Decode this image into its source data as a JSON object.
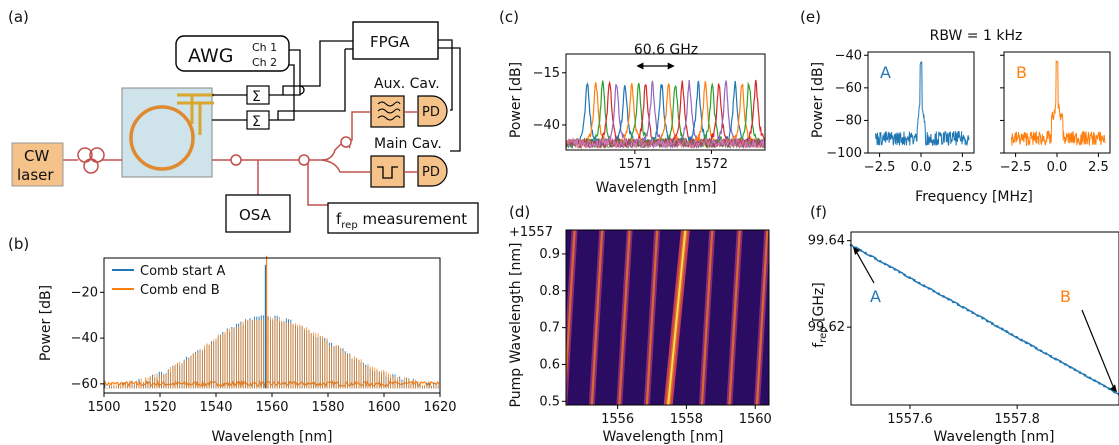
{
  "panels": {
    "a": {
      "letter": "(a)",
      "awg": "AWG",
      "ch1": "Ch 1",
      "ch2": "Ch 2",
      "fpga": "FPGA",
      "sum": "Σ",
      "aux_cav": "Aux. Cav.",
      "main_cav": "Main Cav.",
      "pd": "PD",
      "cw": "CW",
      "laser": "laser",
      "osa": "OSA",
      "frep_f": "f",
      "frep_sub": "rep",
      "frep_rest": " measurement"
    },
    "b": {
      "letter": "(b)"
    },
    "c": {
      "letter": "(c)",
      "annotation": "60.6 GHz"
    },
    "d": {
      "letter": "(d)",
      "offset_label": "+1557"
    },
    "e": {
      "letter": "(e)",
      "title": "RBW = 1 kHz"
    },
    "f": {
      "letter": "(f)",
      "label_a": "A",
      "label_b": "B"
    }
  },
  "colors": {
    "blue": "#1f77b4",
    "orange": "#ff7f0e",
    "green": "#2ca02c",
    "red": "#d62728",
    "purple": "#9467bd",
    "brown": "#8c564b",
    "pink": "#e377c2",
    "fiber": "#c0504d",
    "laser_box": "#f5c28a",
    "chip_bg": "#cfe3ea",
    "ring": "#e8a33c",
    "heat_bg": "#2a0d63",
    "heat_line": "#d86a2e",
    "heat_hot": "#ffd84a"
  },
  "chart_data": [
    {
      "panel": "b",
      "type": "line",
      "title": "",
      "xlabel": "Wavelength [nm]",
      "ylabel": "Power [dB]",
      "xlim": [
        1500,
        1620
      ],
      "ylim": [
        -64,
        -5
      ],
      "xticks": [
        1500,
        1520,
        1540,
        1560,
        1580,
        1600,
        1620
      ],
      "yticks": [
        -60,
        -40,
        -20
      ],
      "legend_position": "top-left",
      "pump_wavelength": 1557.7,
      "series": [
        {
          "name": "Comb start A",
          "color": "blue",
          "peak": -31,
          "pump": -8,
          "edge_left": -56,
          "edge_right": -58,
          "floor": -62
        },
        {
          "name": "Comb end B",
          "color": "orange",
          "peak": -31,
          "pump": -8,
          "edge_left": -56,
          "edge_right": -58,
          "floor": -62
        }
      ]
    },
    {
      "panel": "c",
      "type": "line",
      "title": "",
      "xlabel": "Wavelength [nm]",
      "ylabel": "Power [dB]",
      "xlim": [
        1570.1,
        1572.7
      ],
      "ylim": [
        -52,
        -6
      ],
      "xticks": [
        1571,
        1572
      ],
      "yticks": [
        -15,
        -40
      ],
      "grid": false,
      "resonances": [
        {
          "center": 1570.38,
          "color": "blue"
        },
        {
          "center": 1570.49,
          "color": "orange"
        },
        {
          "center": 1570.58,
          "color": "green"
        },
        {
          "center": 1570.67,
          "color": "red"
        },
        {
          "center": 1570.76,
          "color": "purple"
        },
        {
          "center": 1570.87,
          "color": "blue"
        },
        {
          "center": 1570.96,
          "color": "orange"
        },
        {
          "center": 1571.05,
          "color": "green"
        },
        {
          "center": 1571.14,
          "color": "red"
        },
        {
          "center": 1571.23,
          "color": "purple"
        },
        {
          "center": 1571.35,
          "color": "blue"
        },
        {
          "center": 1571.44,
          "color": "orange"
        },
        {
          "center": 1571.53,
          "color": "green"
        },
        {
          "center": 1571.62,
          "color": "red"
        },
        {
          "center": 1571.71,
          "color": "purple"
        },
        {
          "center": 1571.83,
          "color": "blue"
        },
        {
          "center": 1571.92,
          "color": "orange"
        },
        {
          "center": 1572.01,
          "color": "green"
        },
        {
          "center": 1572.1,
          "color": "red"
        },
        {
          "center": 1572.19,
          "color": "purple"
        },
        {
          "center": 1572.31,
          "color": "blue"
        },
        {
          "center": 1572.4,
          "color": "orange"
        },
        {
          "center": 1572.49,
          "color": "green"
        },
        {
          "center": 1572.58,
          "color": "red"
        }
      ],
      "peak_level": -20,
      "floor_level": -50,
      "annotation_span": [
        1571.02,
        1571.52
      ]
    },
    {
      "panel": "d",
      "type": "heatmap",
      "title": "",
      "xlabel": "Wavelength [nm]",
      "ylabel": "Pump Wavelength [nm]",
      "xlim": [
        1554.5,
        1560.4
      ],
      "ylim": [
        0.49,
        0.965
      ],
      "xticks": [
        1556,
        1558,
        1560
      ],
      "yticks": [
        0.5,
        0.6,
        0.7,
        0.8,
        0.9
      ],
      "offset": "+1557",
      "lines": [
        {
          "x_bottom": 1554.45,
          "x_top": 1554.75,
          "pump": false
        },
        {
          "x_bottom": 1555.25,
          "x_top": 1555.55,
          "pump": false
        },
        {
          "x_bottom": 1556.05,
          "x_top": 1556.35,
          "pump": false
        },
        {
          "x_bottom": 1556.85,
          "x_top": 1557.15,
          "pump": false
        },
        {
          "x_bottom": 1557.47,
          "x_top": 1557.97,
          "pump": true
        },
        {
          "x_bottom": 1558.45,
          "x_top": 1558.75,
          "pump": false
        },
        {
          "x_bottom": 1559.25,
          "x_top": 1559.55,
          "pump": false
        },
        {
          "x_bottom": 1560.05,
          "x_top": 1560.35,
          "pump": false
        }
      ]
    },
    {
      "panel": "e",
      "type": "line",
      "title": "RBW = 1 kHz",
      "xlabel": "Frequency [MHz]",
      "ylabel": "Power [dB]",
      "xlim": [
        -3.2,
        3.2
      ],
      "ylim": [
        -100,
        -38
      ],
      "xticks": [
        -2.5,
        0.0,
        2.5
      ],
      "yticks": [
        -40,
        -60,
        -80,
        -100
      ],
      "subplots": [
        {
          "label": "A",
          "color": "blue",
          "peak": -46,
          "noise": -91
        },
        {
          "label": "B",
          "color": "orange",
          "peak": -45,
          "noise": -91
        }
      ]
    },
    {
      "panel": "f",
      "type": "scatter",
      "title": "",
      "xlabel": "Wavelength [nm]",
      "ylabel": "f_rep [GHz]",
      "xlim": [
        1557.49,
        1557.99
      ],
      "ylim": [
        99.602,
        99.642
      ],
      "xticks": [
        1557.6,
        1557.8
      ],
      "yticks": [
        99.64,
        99.62
      ],
      "start": [
        1557.49,
        99.639
      ],
      "end": [
        1557.99,
        99.6045
      ],
      "annotations": [
        {
          "text": "A",
          "point": [
            1557.49,
            99.639
          ],
          "color": "blue"
        },
        {
          "text": "B",
          "point": [
            1557.99,
            99.6045
          ],
          "color": "orange"
        }
      ]
    }
  ]
}
